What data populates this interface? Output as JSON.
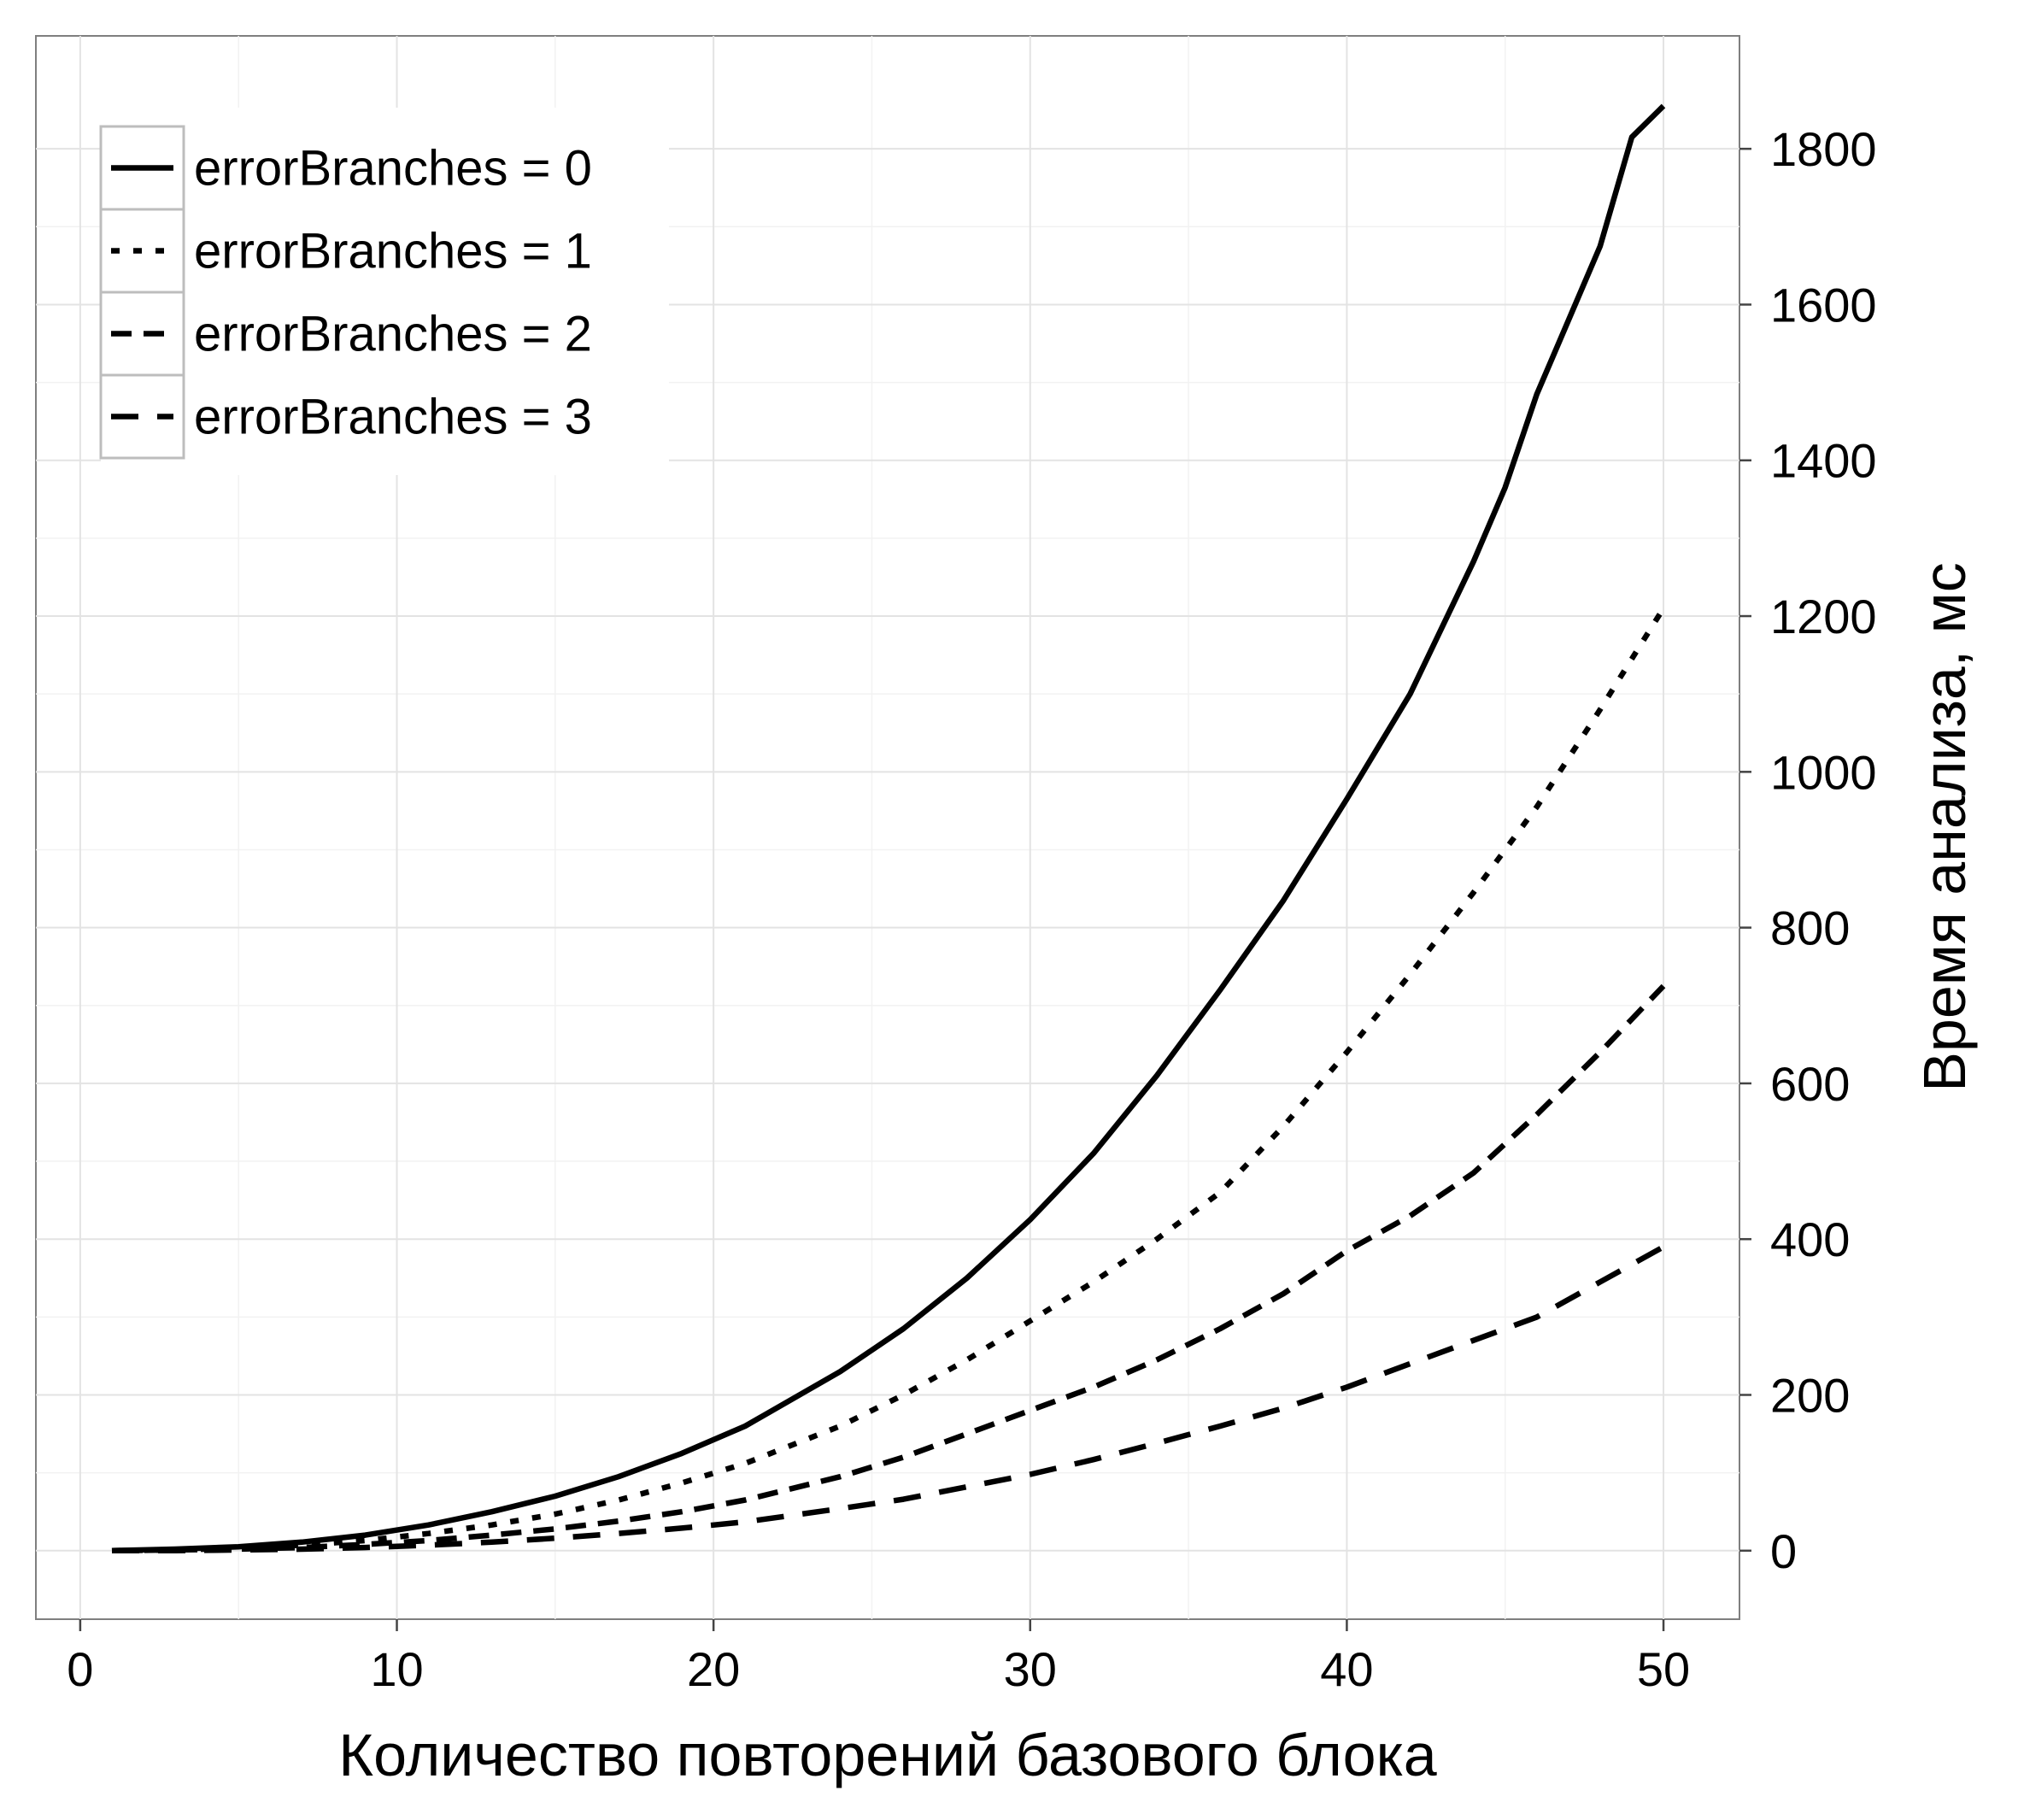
{
  "chart_data": {
    "type": "line",
    "title": "",
    "xlabel": "Количество повторений базового блока",
    "ylabel": "Время анализа, мс",
    "xlim": [
      -1.4,
      52.4
    ],
    "ylim": [
      -88,
      1945
    ],
    "x_ticks": [
      0,
      10,
      20,
      30,
      40,
      50
    ],
    "y_ticks": [
      0,
      200,
      400,
      600,
      800,
      1000,
      1200,
      1400,
      1600,
      1800
    ],
    "y_axis_side": "right",
    "grid": true,
    "legend_position": "top-left",
    "series": [
      {
        "name": "errorBranches = 0",
        "dash": "solid",
        "color": "#000000",
        "points": [
          [
            1,
            0
          ],
          [
            3,
            2
          ],
          [
            5,
            5
          ],
          [
            7,
            11
          ],
          [
            9,
            20
          ],
          [
            11,
            33
          ],
          [
            13,
            50
          ],
          [
            15,
            70
          ],
          [
            17,
            95
          ],
          [
            19,
            125
          ],
          [
            21,
            160
          ],
          [
            24,
            230
          ],
          [
            26,
            285
          ],
          [
            28,
            350
          ],
          [
            30,
            425
          ],
          [
            32,
            510
          ],
          [
            34,
            610
          ],
          [
            36,
            720
          ],
          [
            38,
            835
          ],
          [
            40,
            965
          ],
          [
            42,
            1100
          ],
          [
            44,
            1270
          ],
          [
            45,
            1365
          ],
          [
            46,
            1485
          ],
          [
            47,
            1580
          ],
          [
            48,
            1675
          ],
          [
            49,
            1815
          ],
          [
            50,
            1855
          ]
        ]
      },
      {
        "name": "errorBranches = 1",
        "dash": "dotted",
        "color": "#000000",
        "points": [
          [
            1,
            0
          ],
          [
            3,
            1
          ],
          [
            5,
            3
          ],
          [
            7,
            7
          ],
          [
            9,
            13
          ],
          [
            11,
            22
          ],
          [
            13,
            33
          ],
          [
            15,
            47
          ],
          [
            17,
            65
          ],
          [
            19,
            87
          ],
          [
            21,
            112
          ],
          [
            24,
            160
          ],
          [
            26,
            200
          ],
          [
            28,
            245
          ],
          [
            30,
            295
          ],
          [
            32,
            345
          ],
          [
            34,
            400
          ],
          [
            36,
            460
          ],
          [
            38,
            545
          ],
          [
            40,
            640
          ],
          [
            42,
            740
          ],
          [
            44,
            845
          ],
          [
            46,
            955
          ],
          [
            48,
            1080
          ],
          [
            50,
            1210
          ]
        ]
      },
      {
        "name": "errorBranches = 2",
        "dash": "dashed",
        "color": "#000000",
        "points": [
          [
            1,
            0
          ],
          [
            3,
            1
          ],
          [
            5,
            2
          ],
          [
            7,
            4
          ],
          [
            9,
            8
          ],
          [
            11,
            13
          ],
          [
            13,
            20
          ],
          [
            15,
            28
          ],
          [
            17,
            38
          ],
          [
            19,
            50
          ],
          [
            21,
            65
          ],
          [
            24,
            95
          ],
          [
            26,
            120
          ],
          [
            28,
            150
          ],
          [
            30,
            180
          ],
          [
            32,
            210
          ],
          [
            34,
            245
          ],
          [
            36,
            285
          ],
          [
            38,
            330
          ],
          [
            40,
            385
          ],
          [
            42,
            430
          ],
          [
            44,
            485
          ],
          [
            46,
            560
          ],
          [
            48,
            640
          ],
          [
            50,
            725
          ]
        ]
      },
      {
        "name": "errorBranches = 3",
        "dash": "longdash",
        "color": "#000000",
        "points": [
          [
            1,
            0
          ],
          [
            3,
            0
          ],
          [
            5,
            1
          ],
          [
            7,
            2
          ],
          [
            9,
            4
          ],
          [
            11,
            7
          ],
          [
            13,
            11
          ],
          [
            15,
            16
          ],
          [
            17,
            22
          ],
          [
            19,
            29
          ],
          [
            21,
            37
          ],
          [
            24,
            54
          ],
          [
            26,
            66
          ],
          [
            28,
            82
          ],
          [
            30,
            98
          ],
          [
            32,
            117
          ],
          [
            34,
            138
          ],
          [
            36,
            160
          ],
          [
            38,
            183
          ],
          [
            40,
            210
          ],
          [
            42,
            240
          ],
          [
            44,
            270
          ],
          [
            46,
            300
          ],
          [
            48,
            345
          ],
          [
            50,
            390
          ]
        ]
      }
    ]
  }
}
